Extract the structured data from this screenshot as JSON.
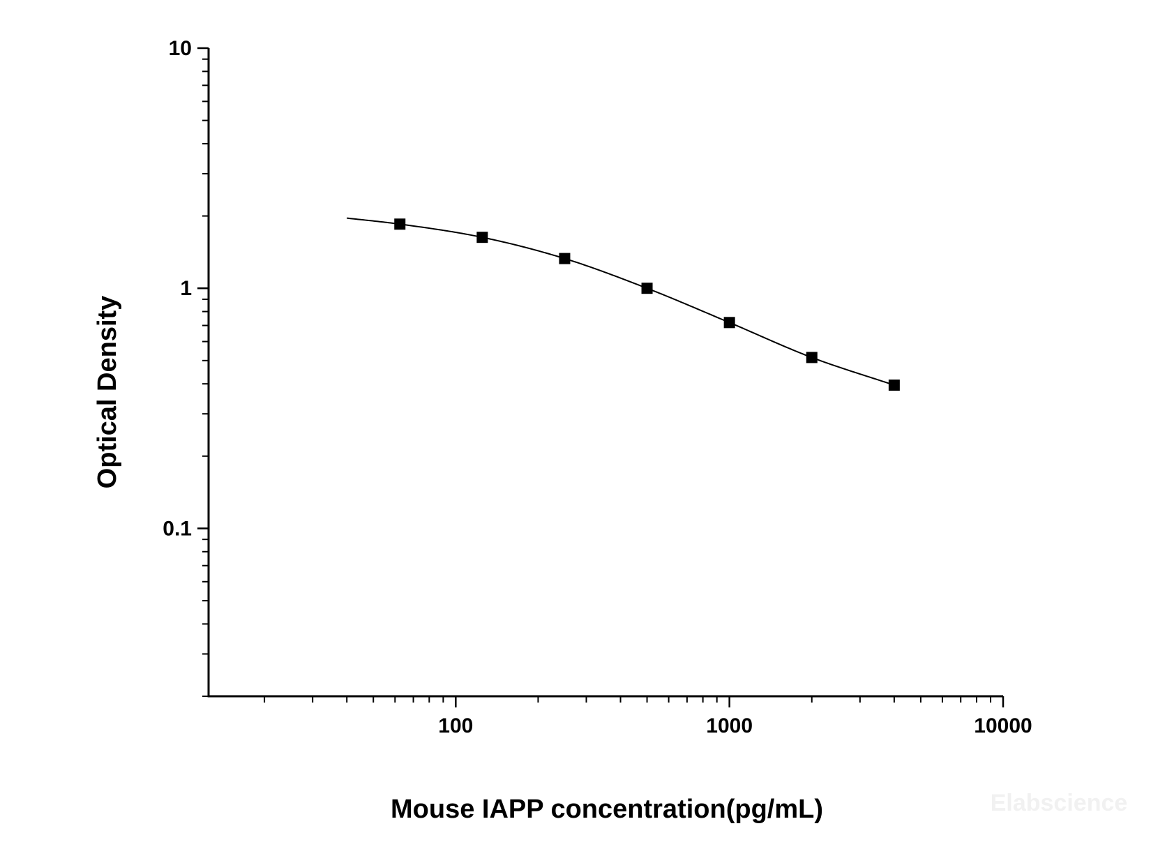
{
  "chart_data": {
    "type": "scatter",
    "xlabel": "Mouse IAPP concentration(pg/mL)",
    "ylabel": "Optical Density",
    "x_scale": "log",
    "y_scale": "log",
    "xlim": [
      12.5,
      10000
    ],
    "ylim": [
      0.02,
      10
    ],
    "x_tick_labels": [
      "100",
      "1000",
      "10000"
    ],
    "y_tick_labels": [
      "10",
      "1",
      "0.1"
    ],
    "grid": false,
    "series": [
      {
        "marker": "square",
        "x": [
          62.5,
          125,
          250,
          500,
          1000,
          2000,
          4000
        ],
        "y": [
          1.85,
          1.63,
          1.33,
          1.0,
          0.72,
          0.515,
          0.395
        ]
      }
    ],
    "fit_curve": {
      "x_range": [
        40,
        4000
      ],
      "y_start": 1.96
    },
    "watermark": "Elabscience"
  },
  "colors": {
    "line": "#000000",
    "marker": "#000000",
    "watermark": "#f1f1f1"
  }
}
